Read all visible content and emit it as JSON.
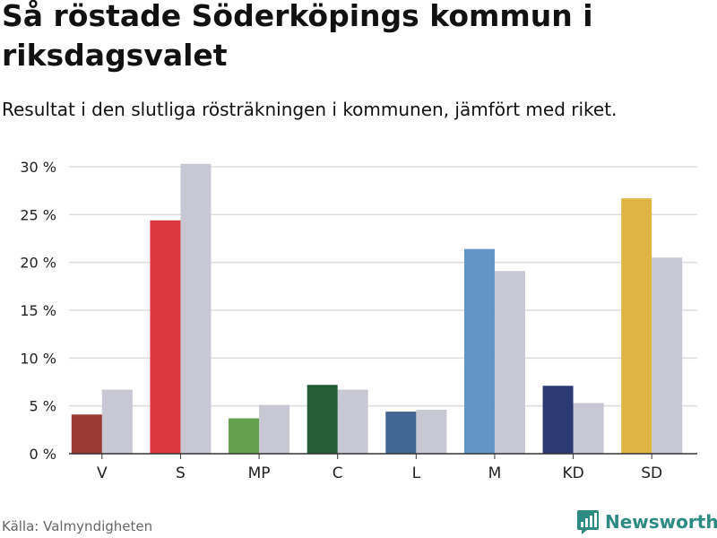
{
  "title": "Så röstade Söderköpings kommun i riksdagsvalet",
  "subtitle": "Resultat i den slutliga rösträkningen i kommunen, jämfört med riket.",
  "source": "Källa: Valmyndigheten",
  "brand": {
    "name": "Newsworthy"
  },
  "colors": {
    "grid": "#dddddd",
    "axis": "#333333",
    "tick_text": "#222222",
    "national": "#c8c8d4",
    "brand": "#2e8b83"
  },
  "chart_data": {
    "type": "bar",
    "title": "Så röstade Söderköpings kommun i riksdagsvalet",
    "xlabel": "",
    "ylabel": "",
    "ylim": [
      0,
      30
    ],
    "y_ticks": [
      0,
      5,
      10,
      15,
      20,
      25,
      30
    ],
    "y_tick_labels": [
      "0 %",
      "5 %",
      "10 %",
      "15 %",
      "20 %",
      "25 %",
      "30 %"
    ],
    "grid": true,
    "categories": [
      "V",
      "S",
      "MP",
      "C",
      "L",
      "M",
      "KD",
      "SD"
    ],
    "series": [
      {
        "name": "Söderköpings kommun",
        "values": [
          4.1,
          24.4,
          3.7,
          7.2,
          4.4,
          21.4,
          7.1,
          26.7
        ],
        "colors": [
          "#9a3a35",
          "#dc363f",
          "#64a04d",
          "#255e36",
          "#426693",
          "#6196c6",
          "#2c3a73",
          "#dfb443"
        ]
      },
      {
        "name": "Riket",
        "values": [
          6.7,
          30.3,
          5.1,
          6.7,
          4.6,
          19.1,
          5.3,
          20.5
        ],
        "color": "#c8c8d4"
      }
    ]
  }
}
